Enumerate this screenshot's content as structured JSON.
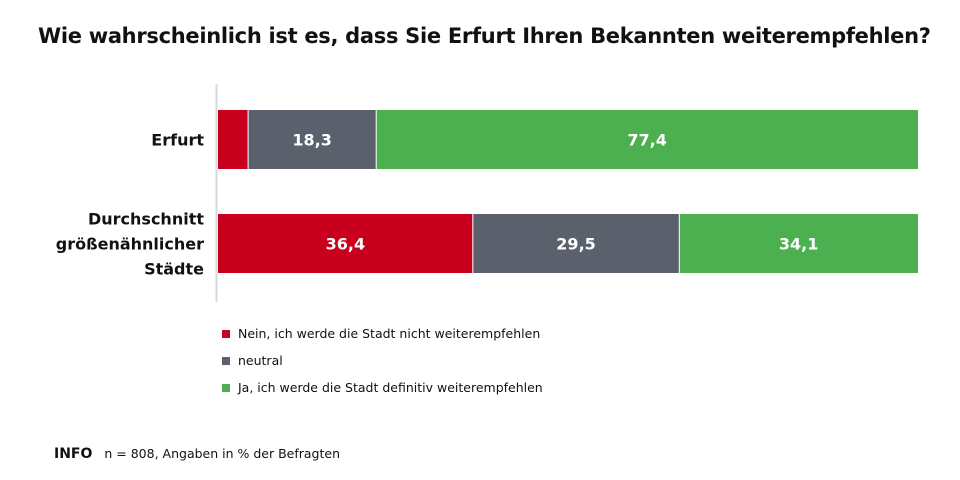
{
  "title": "Wie wahrscheinlich ist es, dass Sie Erfurt Ihren Bekannten weiterempfehlen?",
  "info": {
    "label": "INFO",
    "text": "n = 808, Angaben in % der Befragten"
  },
  "colors": {
    "nein": "#c8001e",
    "neutral": "#5a616c",
    "ja": "#4caf50",
    "axis": "#d9d9d9"
  },
  "chart_data": {
    "type": "bar",
    "orientation": "horizontal",
    "stacked": true,
    "title": "Wie wahrscheinlich ist es, dass Sie Erfurt Ihren Bekannten weiterempfehlen?",
    "categories": [
      [
        "Erfurt"
      ],
      [
        "Durchschnitt",
        "größenähnlicher",
        "Städte"
      ]
    ],
    "series": [
      {
        "name": "Nein, ich werde die Stadt nicht weiterempfehlen",
        "color": "#c8001e",
        "values": [
          4.3,
          36.4
        ],
        "labels": [
          "",
          "36,4"
        ]
      },
      {
        "name": "neutral",
        "color": "#5a616c",
        "values": [
          18.3,
          29.5
        ],
        "labels": [
          "18,3",
          "29,5"
        ]
      },
      {
        "name": "Ja, ich werde die Stadt definitiv weiterempfehlen",
        "color": "#4caf50",
        "values": [
          77.4,
          34.1
        ],
        "labels": [
          "77,4",
          "34,1"
        ]
      }
    ],
    "xlim": [
      0,
      100
    ],
    "grid": false,
    "legend_position": "bottom-left"
  }
}
